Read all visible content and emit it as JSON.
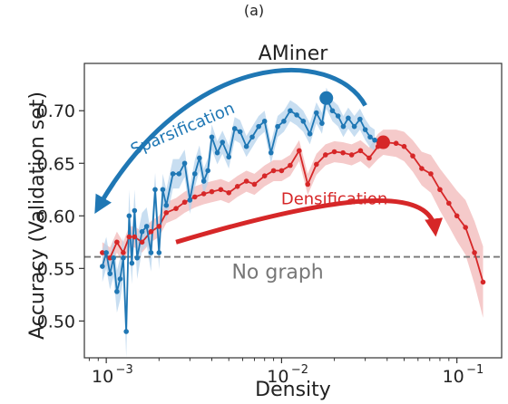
{
  "caption": "(a)",
  "chart_data": {
    "type": "line",
    "title": "AMiner",
    "xlabel": "Density",
    "ylabel": "Accuracy (Validation set)",
    "xscale": "log",
    "xlim": [
      0.00075,
      0.18
    ],
    "ylim": [
      0.465,
      0.745
    ],
    "grid": false,
    "x_ticks": [
      {
        "value": 0.001,
        "base": "10",
        "exp": "−3"
      },
      {
        "value": 0.01,
        "base": "10",
        "exp": "−2"
      },
      {
        "value": 0.1,
        "base": "10",
        "exp": "−1"
      }
    ],
    "y_ticks": [
      {
        "value": 0.5,
        "label": "0.50"
      },
      {
        "value": 0.55,
        "label": "0.55"
      },
      {
        "value": 0.6,
        "label": "0.60"
      },
      {
        "value": 0.65,
        "label": "0.65"
      },
      {
        "value": 0.7,
        "label": "0.70"
      }
    ],
    "baseline": {
      "y": 0.561,
      "label": "No graph",
      "color": "#777777"
    },
    "series": [
      {
        "color": "#d62728",
        "band_color": "#f2b8b8",
        "highlight": {
          "x": 0.038,
          "y": 0.67
        },
        "x": [
          0.00095,
          0.00105,
          0.00115,
          0.00125,
          0.00135,
          0.00145,
          0.0016,
          0.0018,
          0.002,
          0.0022,
          0.0025,
          0.0028,
          0.0032,
          0.0036,
          0.004,
          0.0045,
          0.005,
          0.0056,
          0.0063,
          0.007,
          0.008,
          0.009,
          0.01,
          0.0112,
          0.0126,
          0.0141,
          0.0158,
          0.0178,
          0.02,
          0.0224,
          0.0251,
          0.0282,
          0.0316,
          0.0355,
          0.038,
          0.045,
          0.05,
          0.056,
          0.063,
          0.071,
          0.08,
          0.09,
          0.1,
          0.112,
          0.126,
          0.141
        ],
        "y": [
          0.565,
          0.56,
          0.575,
          0.565,
          0.58,
          0.58,
          0.575,
          0.585,
          0.59,
          0.603,
          0.607,
          0.613,
          0.618,
          0.621,
          0.623,
          0.625,
          0.622,
          0.628,
          0.633,
          0.63,
          0.638,
          0.643,
          0.643,
          0.648,
          0.662,
          0.63,
          0.649,
          0.658,
          0.661,
          0.66,
          0.658,
          0.662,
          0.655,
          0.666,
          0.67,
          0.669,
          0.666,
          0.657,
          0.645,
          0.64,
          0.625,
          0.612,
          0.6,
          0.589,
          0.565,
          0.537
        ],
        "band_halfwidth": [
          0.01,
          0.01,
          0.01,
          0.01,
          0.01,
          0.01,
          0.01,
          0.01,
          0.01,
          0.01,
          0.01,
          0.01,
          0.01,
          0.01,
          0.01,
          0.01,
          0.01,
          0.01,
          0.01,
          0.01,
          0.01,
          0.01,
          0.01,
          0.01,
          0.01,
          0.01,
          0.01,
          0.01,
          0.01,
          0.01,
          0.01,
          0.01,
          0.01,
          0.012,
          0.012,
          0.013,
          0.014,
          0.015,
          0.016,
          0.018,
          0.02,
          0.022,
          0.024,
          0.026,
          0.03,
          0.034
        ]
      },
      {
        "color": "#1f77b4",
        "band_color": "#b5d3ec",
        "highlight": {
          "x": 0.018,
          "y": 0.712
        },
        "x": [
          0.00095,
          0.001,
          0.00105,
          0.0011,
          0.00115,
          0.0012,
          0.00125,
          0.0013,
          0.00135,
          0.0014,
          0.00145,
          0.0015,
          0.0016,
          0.0017,
          0.0018,
          0.0019,
          0.002,
          0.0021,
          0.0022,
          0.0024,
          0.0026,
          0.0028,
          0.003,
          0.0032,
          0.0034,
          0.0036,
          0.0038,
          0.004,
          0.0043,
          0.0046,
          0.005,
          0.0054,
          0.0058,
          0.0063,
          0.0068,
          0.0074,
          0.008,
          0.0087,
          0.0095,
          0.0103,
          0.0112,
          0.0122,
          0.0133,
          0.0145,
          0.0158,
          0.017,
          0.018,
          0.0195,
          0.021,
          0.0225,
          0.024,
          0.026,
          0.028,
          0.03,
          0.032,
          0.034
        ],
        "y": [
          0.552,
          0.565,
          0.545,
          0.56,
          0.528,
          0.54,
          0.56,
          0.49,
          0.6,
          0.555,
          0.605,
          0.56,
          0.585,
          0.59,
          0.565,
          0.625,
          0.565,
          0.625,
          0.61,
          0.64,
          0.64,
          0.65,
          0.615,
          0.64,
          0.655,
          0.633,
          0.643,
          0.675,
          0.66,
          0.67,
          0.656,
          0.683,
          0.68,
          0.666,
          0.675,
          0.685,
          0.69,
          0.66,
          0.685,
          0.69,
          0.7,
          0.696,
          0.69,
          0.678,
          0.698,
          0.688,
          0.712,
          0.7,
          0.695,
          0.685,
          0.693,
          0.685,
          0.692,
          0.682,
          0.675,
          0.672
        ],
        "band_halfwidth": [
          0.015,
          0.015,
          0.015,
          0.018,
          0.02,
          0.02,
          0.02,
          0.025,
          0.025,
          0.02,
          0.02,
          0.02,
          0.018,
          0.018,
          0.018,
          0.016,
          0.016,
          0.015,
          0.015,
          0.014,
          0.014,
          0.013,
          0.013,
          0.013,
          0.012,
          0.012,
          0.012,
          0.012,
          0.011,
          0.011,
          0.011,
          0.011,
          0.011,
          0.01,
          0.01,
          0.01,
          0.01,
          0.01,
          0.01,
          0.01,
          0.01,
          0.01,
          0.01,
          0.01,
          0.01,
          0.01,
          0.01,
          0.01,
          0.01,
          0.01,
          0.01,
          0.01,
          0.01,
          0.01,
          0.01,
          0.01
        ]
      }
    ],
    "annotations": [
      {
        "text": "Sparsification",
        "color": "#1f77b4"
      },
      {
        "text": "Densification",
        "color": "#d62728"
      }
    ]
  }
}
